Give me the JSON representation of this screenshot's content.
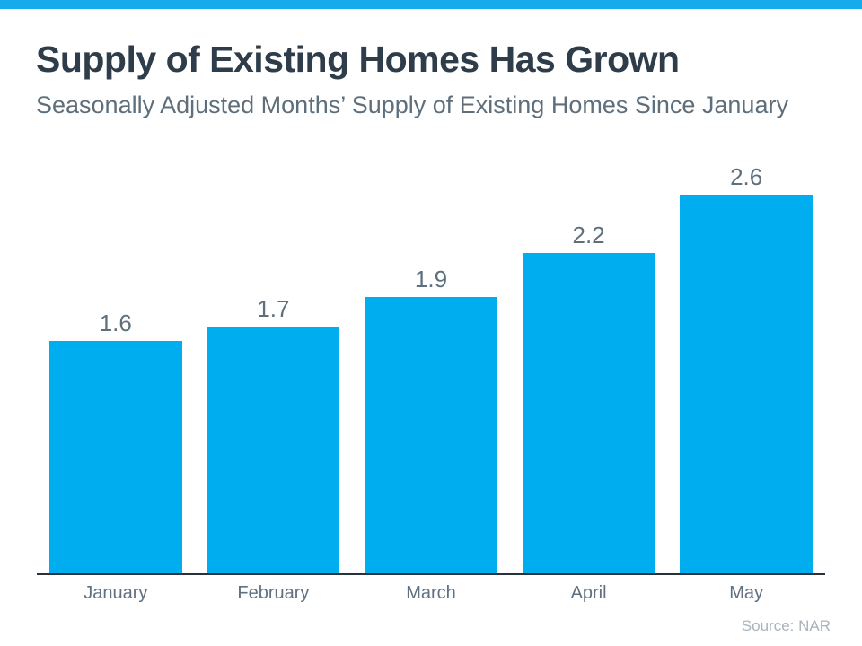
{
  "page": {
    "title": "Supply of Existing Homes Has Grown",
    "subtitle": "Seasonally Adjusted Months’ Supply of Existing Homes Since January",
    "source": "Source: NAR"
  },
  "colors": {
    "accent": "#00AEEF",
    "top_strip": "#16ABEB",
    "title_text": "#2E3D49",
    "subtitle_text": "#5E6F7B",
    "value_label_text": "#5E707C",
    "month_label_text": "#617080",
    "axis_line": "#2A333B",
    "source_text": "#A9B3BD"
  },
  "chart_data": {
    "type": "bar",
    "title": "Supply of Existing Homes Has Grown",
    "subtitle": "Seasonally Adjusted Months’ Supply of Existing Homes Since January",
    "categories": [
      "January",
      "February",
      "March",
      "April",
      "May"
    ],
    "values": [
      1.6,
      1.7,
      1.9,
      2.2,
      2.6
    ],
    "data_labels": [
      "1.6",
      "1.7",
      "1.9",
      "2.2",
      "2.6"
    ],
    "xlabel": "",
    "ylabel": "",
    "ylim": [
      0,
      3.2
    ],
    "grid": false,
    "legend": "none",
    "bar_color": "#00AEEF",
    "source": "Source: NAR"
  }
}
